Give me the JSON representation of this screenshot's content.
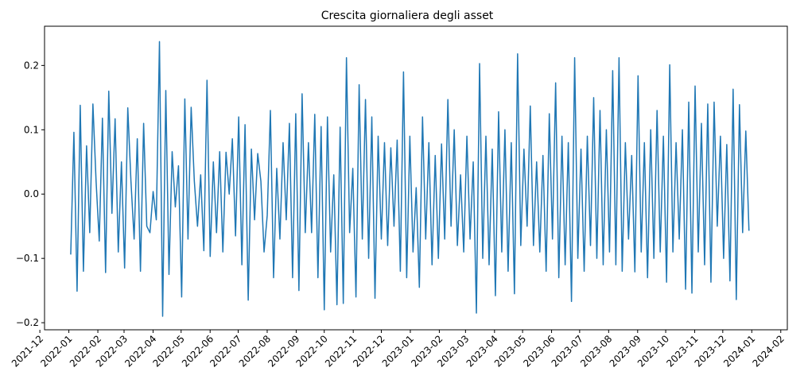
{
  "chart_data": {
    "type": "line",
    "title": "Crescita giornaliera degli asset",
    "xlabel": "",
    "ylabel": "",
    "x_range": [
      "2021-12-06",
      "2024-02-08"
    ],
    "ylim": [
      -0.211,
      0.261
    ],
    "grid": false,
    "legend": "none",
    "line_color": "#1f77b4",
    "x_ticks": [
      "2021-12",
      "2022-01",
      "2022-02",
      "2022-03",
      "2022-04",
      "2022-05",
      "2022-06",
      "2022-07",
      "2022-08",
      "2022-09",
      "2022-10",
      "2022-11",
      "2022-12",
      "2023-01",
      "2023-02",
      "2023-03",
      "2023-04",
      "2023-05",
      "2023-06",
      "2023-07",
      "2023-08",
      "2023-09",
      "2023-10",
      "2023-11",
      "2023-12",
      "2024-01",
      "2024-02"
    ],
    "y_ticks": [
      -0.2,
      -0.1,
      0.0,
      0.1,
      0.2
    ],
    "y_tick_labels": [
      "−0.2",
      "−0.1",
      "0.0",
      "0.1",
      "0.2"
    ],
    "series": [
      {
        "x_start": "2022-01-03",
        "x_end": "2023-12-29",
        "values": [
          -0.094,
          0.096,
          -0.151,
          0.138,
          -0.12,
          0.075,
          -0.06,
          0.14,
          0.02,
          -0.073,
          0.118,
          -0.122,
          0.16,
          -0.03,
          0.117,
          -0.09,
          0.05,
          -0.115,
          0.134,
          0.02,
          -0.07,
          0.086,
          -0.12,
          0.11,
          -0.05,
          -0.06,
          0.004,
          -0.04,
          0.237,
          -0.19,
          0.161,
          -0.125,
          0.066,
          -0.02,
          0.044,
          -0.16,
          0.148,
          -0.07,
          0.135,
          0.02,
          -0.05,
          0.03,
          -0.088,
          0.177,
          -0.097,
          0.05,
          -0.06,
          0.066,
          -0.09,
          0.065,
          0.0,
          0.086,
          -0.065,
          0.12,
          -0.11,
          0.108,
          -0.165,
          0.07,
          -0.04,
          0.063,
          0.02,
          -0.09,
          -0.033,
          0.13,
          -0.13,
          0.04,
          -0.07,
          0.08,
          -0.04,
          0.11,
          -0.13,
          0.125,
          -0.15,
          0.156,
          -0.06,
          0.08,
          -0.06,
          0.124,
          -0.13,
          0.105,
          -0.18,
          0.12,
          -0.09,
          0.03,
          -0.172,
          0.104,
          -0.17,
          0.212,
          -0.06,
          0.04,
          -0.16,
          0.17,
          -0.07,
          0.147,
          -0.1,
          0.12,
          -0.162,
          0.09,
          -0.07,
          0.08,
          -0.08,
          0.072,
          -0.05,
          0.084,
          -0.12,
          0.19,
          -0.13,
          0.09,
          -0.09,
          0.01,
          -0.145,
          0.12,
          -0.07,
          0.08,
          -0.11,
          0.06,
          -0.1,
          0.078,
          -0.07,
          0.147,
          -0.05,
          0.1,
          -0.08,
          0.03,
          -0.09,
          0.09,
          -0.07,
          0.05,
          -0.185,
          0.203,
          -0.1,
          0.09,
          -0.11,
          0.07,
          -0.158,
          0.128,
          -0.09,
          0.1,
          -0.12,
          0.08,
          -0.155,
          0.218,
          -0.08,
          0.07,
          -0.05,
          0.137,
          -0.08,
          0.05,
          -0.09,
          0.06,
          -0.12,
          0.125,
          -0.07,
          0.173,
          -0.13,
          0.09,
          -0.11,
          0.08,
          -0.167,
          0.212,
          -0.1,
          0.07,
          -0.12,
          0.09,
          -0.08,
          0.15,
          -0.1,
          0.13,
          -0.11,
          0.1,
          -0.09,
          0.192,
          -0.11,
          0.212,
          -0.12,
          0.08,
          -0.07,
          0.06,
          -0.121,
          0.184,
          -0.09,
          0.08,
          -0.13,
          0.1,
          -0.1,
          0.13,
          -0.09,
          0.09,
          -0.137,
          0.201,
          -0.09,
          0.08,
          -0.07,
          0.1,
          -0.148,
          0.143,
          -0.154,
          0.168,
          -0.09,
          0.11,
          -0.11,
          0.14,
          -0.137,
          0.143,
          -0.05,
          0.09,
          -0.1,
          0.077,
          -0.135,
          0.163,
          -0.164,
          0.139,
          -0.06,
          0.098,
          -0.057
        ]
      }
    ]
  }
}
